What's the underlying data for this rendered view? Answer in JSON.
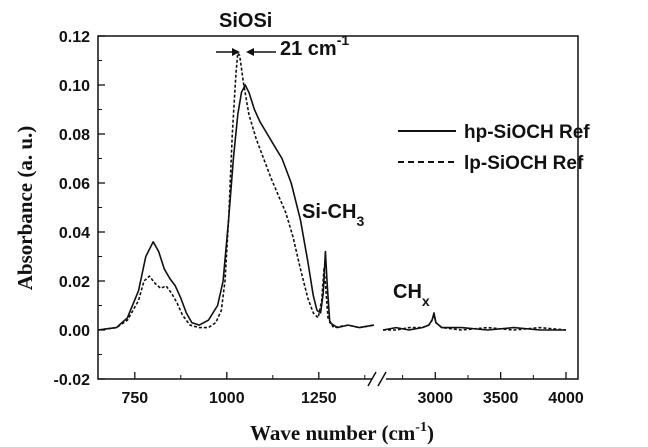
{
  "chart_data": {
    "type": "line",
    "xlabel": "Wave number (cm",
    "xlabel_sup": "-1",
    "xlabel_end": ")",
    "ylabel": "Absorbance (a. u.)",
    "ylim": [
      -0.02,
      0.12
    ],
    "y_ticks": [
      "-0.02",
      "0.00",
      "0.02",
      "0.04",
      "0.06",
      "0.08",
      "0.10",
      "0.12"
    ],
    "y_tick_values": [
      -0.02,
      0.0,
      0.02,
      0.04,
      0.06,
      0.08,
      0.1,
      0.12
    ],
    "x_axis_broken": true,
    "x_segments": [
      {
        "range": [
          650,
          1400
        ],
        "ticks": [
          "750",
          "1000",
          "1250"
        ],
        "tick_values": [
          750,
          1000,
          1250
        ]
      },
      {
        "range": [
          2600,
          4000
        ],
        "ticks": [
          "3000",
          "3500",
          "4000"
        ],
        "tick_values": [
          3000,
          3500,
          4000
        ]
      }
    ],
    "legend_position": "right",
    "series": [
      {
        "name": "hp-SiOCH Ref",
        "dash": "solid",
        "segment1": [
          [
            650,
            0.0
          ],
          [
            700,
            0.001
          ],
          [
            730,
            0.005
          ],
          [
            760,
            0.016
          ],
          [
            780,
            0.03
          ],
          [
            800,
            0.036
          ],
          [
            815,
            0.032
          ],
          [
            830,
            0.025
          ],
          [
            845,
            0.021
          ],
          [
            860,
            0.018
          ],
          [
            875,
            0.013
          ],
          [
            890,
            0.007
          ],
          [
            905,
            0.003
          ],
          [
            925,
            0.002
          ],
          [
            950,
            0.004
          ],
          [
            975,
            0.01
          ],
          [
            990,
            0.02
          ],
          [
            1005,
            0.045
          ],
          [
            1018,
            0.07
          ],
          [
            1030,
            0.088
          ],
          [
            1040,
            0.097
          ],
          [
            1050,
            0.1
          ],
          [
            1060,
            0.097
          ],
          [
            1075,
            0.09
          ],
          [
            1090,
            0.085
          ],
          [
            1110,
            0.08
          ],
          [
            1130,
            0.075
          ],
          [
            1150,
            0.07
          ],
          [
            1175,
            0.06
          ],
          [
            1200,
            0.045
          ],
          [
            1220,
            0.028
          ],
          [
            1235,
            0.014
          ],
          [
            1245,
            0.008
          ],
          [
            1255,
            0.007
          ],
          [
            1262,
            0.015
          ],
          [
            1268,
            0.032
          ],
          [
            1273,
            0.018
          ],
          [
            1280,
            0.003
          ],
          [
            1300,
            0.001
          ],
          [
            1330,
            0.002
          ],
          [
            1360,
            0.001
          ],
          [
            1400,
            0.002
          ]
        ],
        "segment2": [
          [
            2600,
            0.0
          ],
          [
            2700,
            0.001
          ],
          [
            2800,
            0.0
          ],
          [
            2900,
            0.001
          ],
          [
            2950,
            0.002
          ],
          [
            2975,
            0.004
          ],
          [
            2990,
            0.007
          ],
          [
            3005,
            0.003
          ],
          [
            3050,
            0.001
          ],
          [
            3200,
            0.001
          ],
          [
            3400,
            0.0
          ],
          [
            3600,
            0.001
          ],
          [
            3800,
            0.0
          ],
          [
            4000,
            0.0
          ]
        ]
      },
      {
        "name": "lp-SiOCH Ref",
        "dash": "dashed",
        "segment1": [
          [
            650,
            0.0
          ],
          [
            700,
            0.001
          ],
          [
            730,
            0.004
          ],
          [
            760,
            0.012
          ],
          [
            775,
            0.02
          ],
          [
            790,
            0.022
          ],
          [
            805,
            0.019
          ],
          [
            820,
            0.017
          ],
          [
            835,
            0.018
          ],
          [
            850,
            0.015
          ],
          [
            865,
            0.011
          ],
          [
            880,
            0.006
          ],
          [
            900,
            0.002
          ],
          [
            925,
            0.001
          ],
          [
            950,
            0.001
          ],
          [
            970,
            0.003
          ],
          [
            985,
            0.008
          ],
          [
            995,
            0.02
          ],
          [
            1005,
            0.045
          ],
          [
            1015,
            0.08
          ],
          [
            1025,
            0.105
          ],
          [
            1030,
            0.113
          ],
          [
            1035,
            0.112
          ],
          [
            1045,
            0.101
          ],
          [
            1060,
            0.088
          ],
          [
            1080,
            0.078
          ],
          [
            1100,
            0.07
          ],
          [
            1120,
            0.062
          ],
          [
            1140,
            0.055
          ],
          [
            1160,
            0.048
          ],
          [
            1180,
            0.038
          ],
          [
            1200,
            0.025
          ],
          [
            1220,
            0.013
          ],
          [
            1235,
            0.007
          ],
          [
            1248,
            0.005
          ],
          [
            1258,
            0.012
          ],
          [
            1264,
            0.025
          ],
          [
            1268,
            0.019
          ],
          [
            1275,
            0.005
          ],
          [
            1290,
            0.001
          ],
          [
            1330,
            0.002
          ],
          [
            1360,
            0.001
          ],
          [
            1400,
            0.002
          ]
        ],
        "segment2": [
          [
            2600,
            0.0
          ],
          [
            2700,
            0.0
          ],
          [
            2800,
            0.001
          ],
          [
            2900,
            0.001
          ],
          [
            2950,
            0.002
          ],
          [
            2975,
            0.004
          ],
          [
            2990,
            0.006
          ],
          [
            3005,
            0.003
          ],
          [
            3050,
            0.001
          ],
          [
            3200,
            0.0
          ],
          [
            3400,
            0.001
          ],
          [
            3600,
            0.0
          ],
          [
            3800,
            0.001
          ],
          [
            4000,
            0.0
          ]
        ]
      }
    ],
    "annotations": {
      "siosi": "SiOSi",
      "shift": "21 cm",
      "shift_sup": "-1",
      "sich3": "Si-CH",
      "sich3_sub": "3",
      "chx": "CH",
      "chx_sub": "x"
    }
  }
}
